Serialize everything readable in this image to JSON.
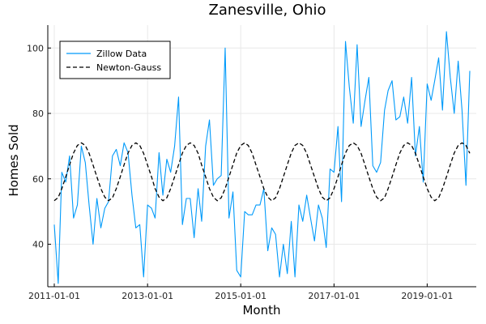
{
  "chart_data": {
    "type": "line",
    "title": "Zanesville, Ohio",
    "xlabel": "Month",
    "ylabel": "Homes Sold",
    "xlim": [
      "2011-01-01",
      "2019-12-01"
    ],
    "ylim": [
      27,
      107
    ],
    "x_ticks": [
      "2011-01-01",
      "2013-01-01",
      "2015-01-01",
      "2017-01-01",
      "2019-01-01"
    ],
    "y_ticks": [
      40,
      60,
      80,
      100
    ],
    "grid": true,
    "legend": "top-left",
    "x": [
      "2011-01-01",
      "2011-02-01",
      "2011-03-01",
      "2011-04-01",
      "2011-05-01",
      "2011-06-01",
      "2011-07-01",
      "2011-08-01",
      "2011-09-01",
      "2011-10-01",
      "2011-11-01",
      "2011-12-01",
      "2012-01-01",
      "2012-02-01",
      "2012-03-01",
      "2012-04-01",
      "2012-05-01",
      "2012-06-01",
      "2012-07-01",
      "2012-08-01",
      "2012-09-01",
      "2012-10-01",
      "2012-11-01",
      "2012-12-01",
      "2013-01-01",
      "2013-02-01",
      "2013-03-01",
      "2013-04-01",
      "2013-05-01",
      "2013-06-01",
      "2013-07-01",
      "2013-08-01",
      "2013-09-01",
      "2013-10-01",
      "2013-11-01",
      "2013-12-01",
      "2014-01-01",
      "2014-02-01",
      "2014-03-01",
      "2014-04-01",
      "2014-05-01",
      "2014-06-01",
      "2014-07-01",
      "2014-08-01",
      "2014-09-01",
      "2014-10-01",
      "2014-11-01",
      "2014-12-01",
      "2015-01-01",
      "2015-02-01",
      "2015-03-01",
      "2015-04-01",
      "2015-05-01",
      "2015-06-01",
      "2015-07-01",
      "2015-08-01",
      "2015-09-01",
      "2015-10-01",
      "2015-11-01",
      "2015-12-01",
      "2016-01-01",
      "2016-02-01",
      "2016-03-01",
      "2016-04-01",
      "2016-05-01",
      "2016-06-01",
      "2016-07-01",
      "2016-08-01",
      "2016-09-01",
      "2016-10-01",
      "2016-11-01",
      "2016-12-01",
      "2017-01-01",
      "2017-02-01",
      "2017-03-01",
      "2017-04-01",
      "2017-05-01",
      "2017-06-01",
      "2017-07-01",
      "2017-08-01",
      "2017-09-01",
      "2017-10-01",
      "2017-11-01",
      "2017-12-01",
      "2018-01-01",
      "2018-02-01",
      "2018-03-01",
      "2018-04-01",
      "2018-05-01",
      "2018-06-01",
      "2018-07-01",
      "2018-08-01",
      "2018-09-01",
      "2018-10-01",
      "2018-11-01",
      "2018-12-01",
      "2019-01-01",
      "2019-02-01",
      "2019-03-01",
      "2019-04-01",
      "2019-05-01",
      "2019-06-01",
      "2019-07-01",
      "2019-08-01",
      "2019-09-01",
      "2019-10-01",
      "2019-11-01",
      "2019-12-01"
    ],
    "series": [
      {
        "name": "Zillow Data",
        "color": "#009AFA",
        "style": "solid",
        "values": [
          46,
          28,
          62,
          59,
          67,
          48,
          52,
          70,
          65,
          52,
          40,
          54,
          45,
          51,
          53,
          67,
          69,
          64,
          71,
          68,
          55,
          45,
          46,
          30,
          52,
          51,
          48,
          68,
          55,
          66,
          62,
          70,
          85,
          46,
          54,
          54,
          42,
          57,
          47,
          70,
          78,
          58,
          60,
          61,
          100,
          48,
          56,
          32,
          30,
          50,
          49,
          49,
          52,
          52,
          57,
          38,
          45,
          43,
          30,
          40,
          31,
          47,
          30,
          52,
          47,
          55,
          48,
          41,
          52,
          48,
          39,
          63,
          62,
          76,
          53,
          102,
          88,
          77,
          101,
          76,
          84,
          91,
          64,
          62,
          65,
          81,
          87,
          90,
          78,
          79,
          85,
          77,
          91,
          67,
          76,
          59,
          89,
          84,
          90,
          97,
          81,
          105,
          91,
          80,
          96,
          81,
          58,
          93
        ]
      },
      {
        "name": "Newton-Gauss",
        "color": "#000000",
        "style": "dashed",
        "values": [
          53.3,
          54.3,
          57,
          60.6,
          64.3,
          67.9,
          70.2,
          71,
          70.2,
          67.8,
          64.2,
          60.6,
          57,
          54.4,
          53.3,
          54.2,
          57,
          60.6,
          64.3,
          67.9,
          70.2,
          71,
          70.2,
          67.8,
          64.2,
          60.6,
          57,
          54.4,
          53.3,
          54.2,
          57,
          60.6,
          64.3,
          67.9,
          70.2,
          71,
          70.2,
          67.8,
          64.2,
          60.6,
          57,
          54.4,
          53.3,
          54.2,
          57,
          60.6,
          64.3,
          67.9,
          70.2,
          71,
          70.2,
          67.8,
          64.2,
          60.6,
          57,
          54.4,
          53.3,
          54.2,
          57,
          60.6,
          64.3,
          67.9,
          70.2,
          71,
          70.2,
          67.8,
          64.2,
          60.6,
          57,
          54.4,
          53.3,
          54.2,
          57,
          60.6,
          64.3,
          67.9,
          70.2,
          71,
          70.2,
          67.8,
          64.2,
          60.6,
          57,
          54.4,
          53.3,
          54.2,
          57,
          60.6,
          64.3,
          67.9,
          70.2,
          71,
          70.2,
          67.8,
          64.2,
          60.6,
          57,
          54.4,
          53.3,
          54.2,
          57,
          60.6,
          64.3,
          67.9,
          70.2,
          71,
          70.2,
          67.8
        ]
      }
    ]
  }
}
